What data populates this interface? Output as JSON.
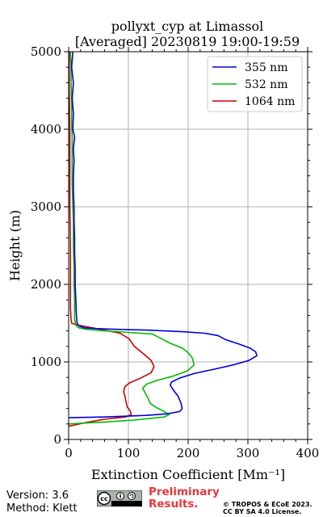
{
  "chart_data": {
    "type": "line",
    "title": "pollyxt_cyp at Limassol",
    "subtitle": "[Averaged] 20230819 19:00-19:59",
    "xlabel": "Extinction Coefficient [Mm⁻¹]",
    "ylabel": "Height (m)",
    "xlim": [
      0,
      400
    ],
    "ylim": [
      0,
      5000
    ],
    "x_ticks": [
      0,
      100,
      200,
      300,
      400
    ],
    "y_ticks": [
      0,
      1000,
      2000,
      3000,
      4000,
      5000
    ],
    "grid": true,
    "legend_position": "top-right",
    "series": [
      {
        "name": "355 nm",
        "color": "#0000dd",
        "points": [
          [
            0,
            280
          ],
          [
            60,
            290
          ],
          [
            130,
            310
          ],
          [
            165,
            330
          ],
          [
            186,
            360
          ],
          [
            190,
            400
          ],
          [
            188,
            470
          ],
          [
            183,
            560
          ],
          [
            175,
            640
          ],
          [
            170,
            700
          ],
          [
            172,
            740
          ],
          [
            185,
            790
          ],
          [
            210,
            850
          ],
          [
            240,
            900
          ],
          [
            275,
            960
          ],
          [
            302,
            1020
          ],
          [
            315,
            1080
          ],
          [
            313,
            1130
          ],
          [
            303,
            1180
          ],
          [
            285,
            1230
          ],
          [
            262,
            1290
          ],
          [
            250,
            1340
          ],
          [
            228,
            1370
          ],
          [
            190,
            1390
          ],
          [
            130,
            1410
          ],
          [
            80,
            1420
          ],
          [
            45,
            1430
          ],
          [
            26,
            1440
          ],
          [
            18,
            1460
          ],
          [
            14,
            1500
          ],
          [
            13,
            1600
          ],
          [
            12,
            1800
          ],
          [
            11,
            2000
          ],
          [
            11,
            2200
          ],
          [
            10,
            2400
          ],
          [
            10,
            2600
          ],
          [
            9,
            2800
          ],
          [
            9,
            3000
          ],
          [
            8,
            3200
          ],
          [
            8,
            3400
          ],
          [
            9,
            3600
          ],
          [
            8,
            3750
          ],
          [
            10,
            3900
          ],
          [
            7,
            4000
          ],
          [
            8,
            4200
          ],
          [
            6,
            4400
          ],
          [
            8,
            4600
          ],
          [
            5,
            4800
          ],
          [
            7,
            5000
          ]
        ]
      },
      {
        "name": "532 nm",
        "color": "#00bb00",
        "points": [
          [
            0,
            200
          ],
          [
            60,
            225
          ],
          [
            110,
            250
          ],
          [
            160,
            290
          ],
          [
            168,
            320
          ],
          [
            160,
            360
          ],
          [
            147,
            410
          ],
          [
            137,
            460
          ],
          [
            133,
            530
          ],
          [
            128,
            600
          ],
          [
            124,
            660
          ],
          [
            130,
            710
          ],
          [
            147,
            760
          ],
          [
            172,
            810
          ],
          [
            198,
            880
          ],
          [
            210,
            960
          ],
          [
            207,
            1050
          ],
          [
            200,
            1120
          ],
          [
            190,
            1180
          ],
          [
            170,
            1240
          ],
          [
            155,
            1300
          ],
          [
            140,
            1360
          ],
          [
            100,
            1380
          ],
          [
            60,
            1400
          ],
          [
            30,
            1420
          ],
          [
            17,
            1440
          ],
          [
            12,
            1470
          ],
          [
            10,
            1550
          ],
          [
            10,
            1800
          ],
          [
            9,
            2000
          ],
          [
            9,
            2200
          ],
          [
            8,
            2500
          ],
          [
            8,
            2800
          ],
          [
            7,
            3000
          ],
          [
            6,
            3300
          ],
          [
            6,
            3600
          ],
          [
            6,
            3900
          ],
          [
            5,
            4100
          ],
          [
            5,
            4300
          ],
          [
            4,
            4600
          ],
          [
            4,
            4800
          ],
          [
            3,
            5000
          ]
        ]
      },
      {
        "name": "1064 nm",
        "color": "#cc0000",
        "points": [
          [
            0,
            170
          ],
          [
            30,
            220
          ],
          [
            60,
            260
          ],
          [
            95,
            290
          ],
          [
            105,
            320
          ],
          [
            103,
            370
          ],
          [
            98,
            420
          ],
          [
            96,
            490
          ],
          [
            94,
            560
          ],
          [
            92,
            620
          ],
          [
            94,
            680
          ],
          [
            102,
            730
          ],
          [
            120,
            790
          ],
          [
            138,
            860
          ],
          [
            143,
            940
          ],
          [
            138,
            1020
          ],
          [
            126,
            1100
          ],
          [
            110,
            1200
          ],
          [
            101,
            1300
          ],
          [
            86,
            1370
          ],
          [
            40,
            1440
          ],
          [
            12,
            1480
          ],
          [
            5,
            1500
          ],
          [
            4,
            1550
          ],
          [
            3,
            1700
          ],
          [
            3,
            2000
          ],
          [
            3,
            2500
          ],
          [
            2,
            3000
          ],
          [
            2,
            3500
          ],
          [
            2,
            4000
          ],
          [
            1,
            4500
          ],
          [
            1,
            5000
          ]
        ]
      }
    ]
  },
  "footer": {
    "version": "Version: 3.6",
    "method": "Method: Klett",
    "prelim_line1": "Preliminary",
    "prelim_line2": "Results.",
    "copyright_line1": "© TROPOS & ECoE 2023.",
    "copyright_line2": "CC BY SA 4.0 License."
  }
}
